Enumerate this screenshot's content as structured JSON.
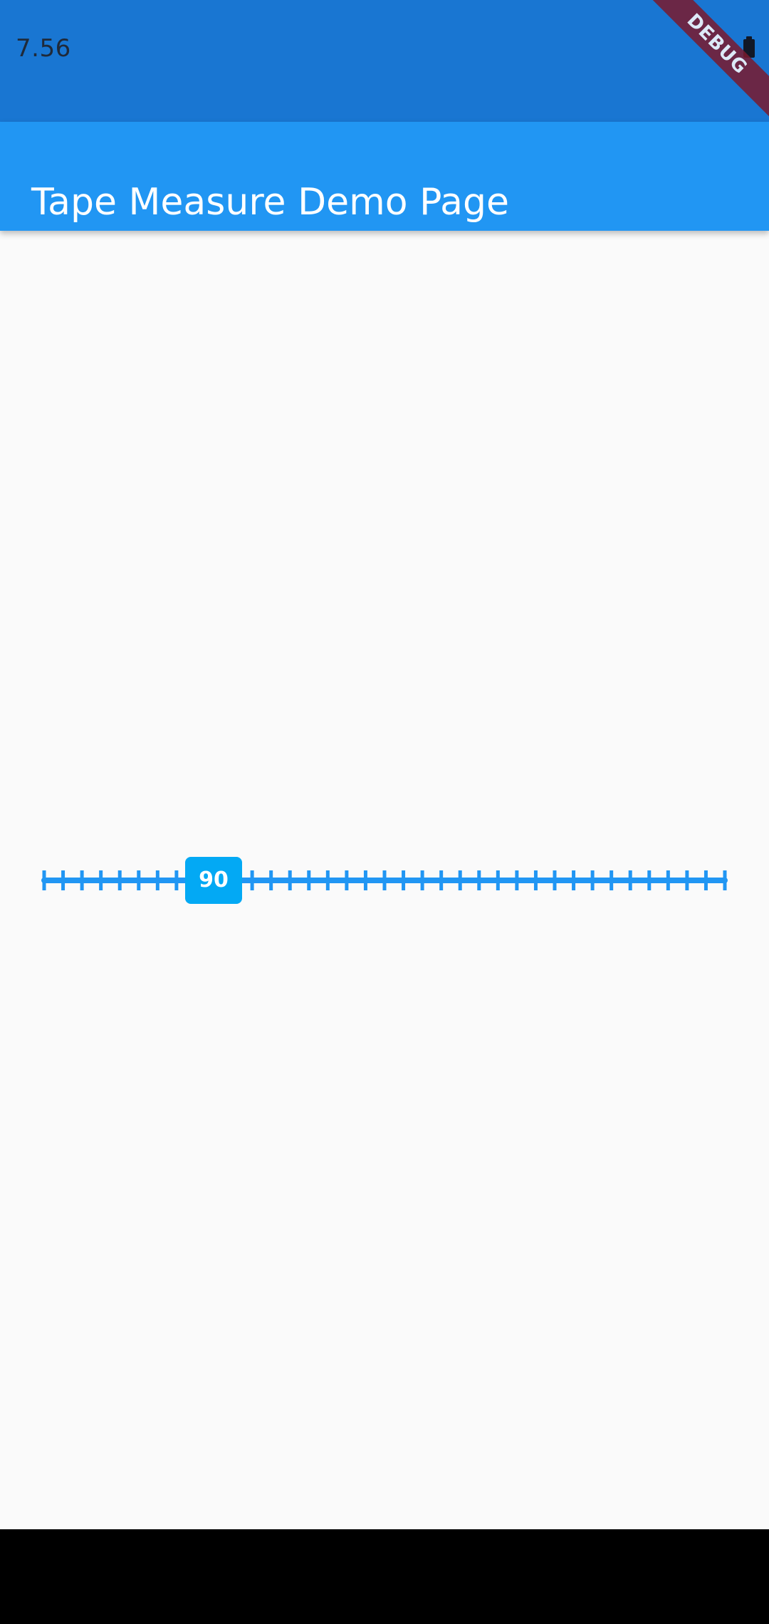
{
  "status_bar": {
    "time": "7.56",
    "battery_icon": "battery-icon"
  },
  "app_bar": {
    "title": "Tape Measure Demo Page"
  },
  "debug_banner": {
    "label": "DEBUG"
  },
  "tape_measure": {
    "value": "90",
    "value_number": 90,
    "tick_count": 37,
    "colors": {
      "track": "#2196f3",
      "badge": "#03a9f4"
    }
  },
  "colors": {
    "status_bar": "#1976d2",
    "app_bar": "#2196f3",
    "background": "#fafafa",
    "nav_bar": "#000000"
  }
}
